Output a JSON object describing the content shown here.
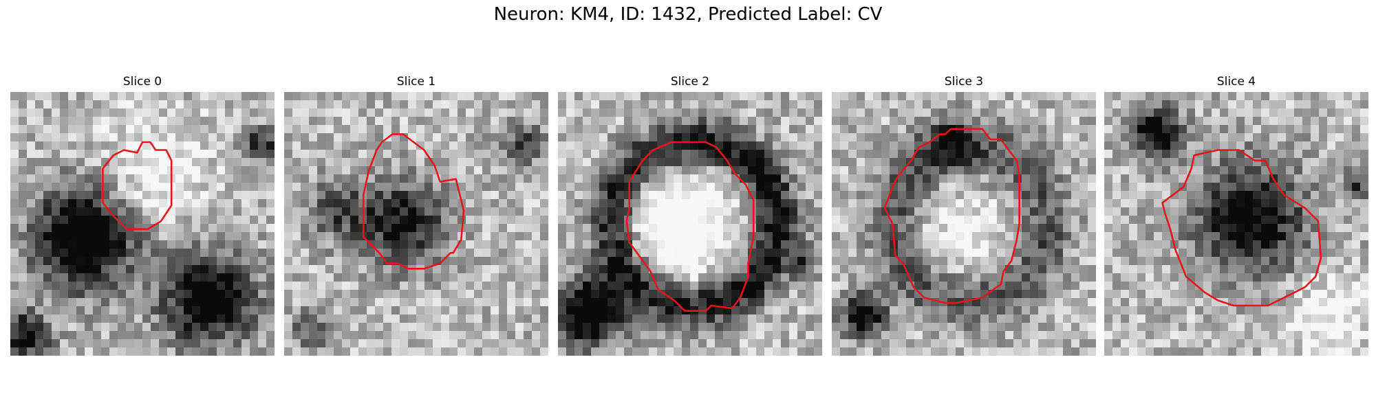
{
  "figure": {
    "title": "Neuron: KM4, ID: 1432, Predicted Label: CV"
  },
  "slices": [
    {
      "title": "Slice 0",
      "seed": 11,
      "dark_blobs": [
        [
          0.28,
          0.55,
          0.24,
          0.95
        ],
        [
          0.75,
          0.78,
          0.22,
          0.85
        ],
        [
          0.05,
          0.93,
          0.12,
          0.7
        ],
        [
          0.95,
          0.2,
          0.08,
          0.6
        ]
      ],
      "light_blobs": [
        [
          0.55,
          0.3,
          0.25,
          0.3
        ]
      ],
      "contour": [
        [
          0.48,
          0.23
        ],
        [
          0.5,
          0.19
        ],
        [
          0.53,
          0.19
        ],
        [
          0.55,
          0.22
        ],
        [
          0.59,
          0.22
        ],
        [
          0.61,
          0.26
        ],
        [
          0.61,
          0.43
        ],
        [
          0.57,
          0.49
        ],
        [
          0.52,
          0.52
        ],
        [
          0.44,
          0.52
        ],
        [
          0.39,
          0.47
        ],
        [
          0.35,
          0.42
        ],
        [
          0.35,
          0.29
        ],
        [
          0.39,
          0.24
        ],
        [
          0.43,
          0.22
        ]
      ]
    },
    {
      "title": "Slice 1",
      "seed": 23,
      "dark_blobs": [
        [
          0.45,
          0.5,
          0.2,
          0.7
        ],
        [
          0.2,
          0.45,
          0.14,
          0.45
        ],
        [
          0.1,
          0.9,
          0.1,
          0.4
        ],
        [
          0.9,
          0.2,
          0.1,
          0.45
        ]
      ],
      "light_blobs": [],
      "contour": [
        [
          0.37,
          0.19
        ],
        [
          0.41,
          0.16
        ],
        [
          0.45,
          0.16
        ],
        [
          0.49,
          0.19
        ],
        [
          0.53,
          0.22
        ],
        [
          0.57,
          0.28
        ],
        [
          0.59,
          0.34
        ],
        [
          0.65,
          0.33
        ],
        [
          0.68,
          0.45
        ],
        [
          0.67,
          0.56
        ],
        [
          0.64,
          0.61
        ],
        [
          0.63,
          0.61
        ],
        [
          0.59,
          0.65
        ],
        [
          0.53,
          0.67
        ],
        [
          0.47,
          0.67
        ],
        [
          0.43,
          0.65
        ],
        [
          0.39,
          0.65
        ],
        [
          0.36,
          0.61
        ],
        [
          0.3,
          0.55
        ],
        [
          0.3,
          0.39
        ],
        [
          0.32,
          0.3
        ],
        [
          0.35,
          0.22
        ]
      ]
    },
    {
      "title": "Slice 2",
      "seed": 37,
      "ring": [
        0.52,
        0.5,
        0.31,
        0.06,
        0.95
      ],
      "dark_blobs": [
        [
          0.12,
          0.83,
          0.16,
          0.95
        ],
        [
          0.93,
          0.65,
          0.07,
          0.4
        ]
      ],
      "light_blobs": [
        [
          0.46,
          0.52,
          0.24,
          0.55
        ]
      ],
      "contour": [
        [
          0.43,
          0.19
        ],
        [
          0.48,
          0.19
        ],
        [
          0.53,
          0.19
        ],
        [
          0.56,
          0.19
        ],
        [
          0.6,
          0.21
        ],
        [
          0.64,
          0.26
        ],
        [
          0.67,
          0.31
        ],
        [
          0.71,
          0.35
        ],
        [
          0.74,
          0.41
        ],
        [
          0.74,
          0.55
        ],
        [
          0.73,
          0.6
        ],
        [
          0.72,
          0.65
        ],
        [
          0.72,
          0.7
        ],
        [
          0.69,
          0.78
        ],
        [
          0.66,
          0.82
        ],
        [
          0.58,
          0.81
        ],
        [
          0.56,
          0.83
        ],
        [
          0.48,
          0.83
        ],
        [
          0.44,
          0.79
        ],
        [
          0.38,
          0.75
        ],
        [
          0.35,
          0.68
        ],
        [
          0.27,
          0.57
        ],
        [
          0.26,
          0.49
        ],
        [
          0.27,
          0.44
        ],
        [
          0.27,
          0.34
        ],
        [
          0.32,
          0.26
        ],
        [
          0.36,
          0.22
        ]
      ]
    },
    {
      "title": "Slice 3",
      "seed": 51,
      "ring": [
        0.52,
        0.5,
        0.29,
        0.07,
        0.55
      ],
      "dark_blobs": [
        [
          0.12,
          0.85,
          0.1,
          0.85
        ],
        [
          0.45,
          0.2,
          0.12,
          0.4
        ]
      ],
      "light_blobs": [
        [
          0.5,
          0.55,
          0.2,
          0.25
        ]
      ],
      "contour": [
        [
          0.41,
          0.16
        ],
        [
          0.43,
          0.16
        ],
        [
          0.45,
          0.14
        ],
        [
          0.57,
          0.14
        ],
        [
          0.6,
          0.18
        ],
        [
          0.64,
          0.18
        ],
        [
          0.67,
          0.22
        ],
        [
          0.7,
          0.26
        ],
        [
          0.71,
          0.32
        ],
        [
          0.71,
          0.5
        ],
        [
          0.7,
          0.56
        ],
        [
          0.68,
          0.64
        ],
        [
          0.65,
          0.68
        ],
        [
          0.64,
          0.73
        ],
        [
          0.61,
          0.75
        ],
        [
          0.57,
          0.78
        ],
        [
          0.47,
          0.8
        ],
        [
          0.43,
          0.8
        ],
        [
          0.35,
          0.78
        ],
        [
          0.31,
          0.74
        ],
        [
          0.27,
          0.65
        ],
        [
          0.24,
          0.62
        ],
        [
          0.23,
          0.5
        ],
        [
          0.2,
          0.44
        ],
        [
          0.23,
          0.36
        ],
        [
          0.25,
          0.32
        ],
        [
          0.3,
          0.26
        ],
        [
          0.33,
          0.21
        ],
        [
          0.37,
          0.19
        ]
      ]
    },
    {
      "title": "Slice 4",
      "seed": 67,
      "dark_blobs": [
        [
          0.55,
          0.48,
          0.26,
          0.8
        ],
        [
          0.2,
          0.15,
          0.12,
          0.8
        ],
        [
          0.95,
          0.35,
          0.07,
          0.45
        ]
      ],
      "light_blobs": [
        [
          0.85,
          0.85,
          0.2,
          0.3
        ]
      ],
      "contour": [
        [
          0.34,
          0.24
        ],
        [
          0.43,
          0.22
        ],
        [
          0.51,
          0.22
        ],
        [
          0.57,
          0.26
        ],
        [
          0.61,
          0.26
        ],
        [
          0.64,
          0.33
        ],
        [
          0.68,
          0.39
        ],
        [
          0.76,
          0.44
        ],
        [
          0.81,
          0.49
        ],
        [
          0.82,
          0.63
        ],
        [
          0.8,
          0.7
        ],
        [
          0.76,
          0.74
        ],
        [
          0.7,
          0.77
        ],
        [
          0.62,
          0.81
        ],
        [
          0.49,
          0.81
        ],
        [
          0.43,
          0.79
        ],
        [
          0.38,
          0.76
        ],
        [
          0.31,
          0.7
        ],
        [
          0.27,
          0.6
        ],
        [
          0.25,
          0.52
        ],
        [
          0.23,
          0.46
        ],
        [
          0.22,
          0.42
        ],
        [
          0.3,
          0.36
        ],
        [
          0.33,
          0.29
        ]
      ]
    }
  ]
}
